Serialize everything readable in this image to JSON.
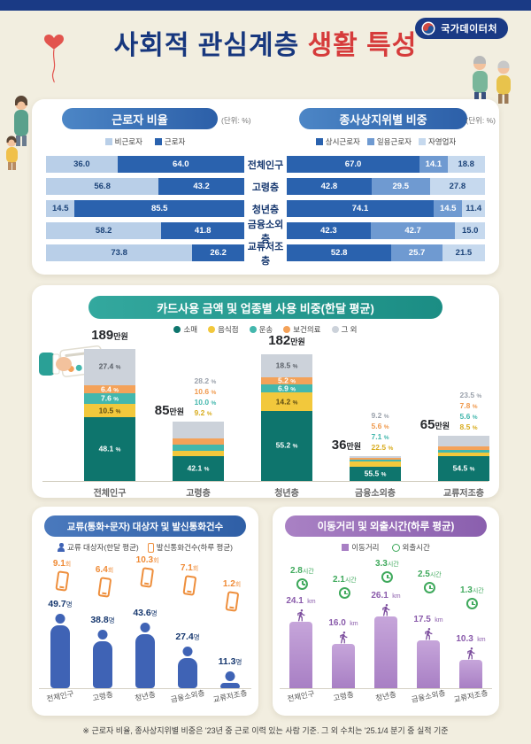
{
  "page": {
    "logo": "국가데이터처",
    "title_blue": "사회적 관심계층",
    "title_red": "생활 특성",
    "footnote": "※ 근로자 비율, 종사상지위별 비중은 '23년 중 근로 이력 있는 사람 기준. 그 외 수치는 '25.1/4 분기 중 실적 기준"
  },
  "chart_data": [
    {
      "id": "worker_ratio",
      "type": "bar",
      "title": "근로자 비율",
      "unit_label": "(단위: %)",
      "legend": [
        "비근로자",
        "근로자"
      ],
      "legend_position": "top",
      "colors": [
        "#b9cfe8",
        "#2a62ae"
      ],
      "categories": [
        "전체인구",
        "고령층",
        "청년층",
        "금융소외층",
        "교류저조층"
      ],
      "series": [
        {
          "name": "비근로자",
          "values": [
            36.0,
            56.8,
            14.5,
            58.2,
            73.8
          ]
        },
        {
          "name": "근로자",
          "values": [
            64.0,
            43.2,
            85.5,
            41.8,
            26.2
          ]
        }
      ]
    },
    {
      "id": "employment_status",
      "type": "bar",
      "title": "종사상지위별 비중",
      "unit_label": "(단위: %)",
      "legend": [
        "상시근로자",
        "일용근로자",
        "자영업자"
      ],
      "legend_position": "top",
      "colors": [
        "#2a62ae",
        "#6f9ad1",
        "#c6d9ee"
      ],
      "categories": [
        "전체인구",
        "고령층",
        "청년층",
        "금융소외층",
        "교류저조층"
      ],
      "series": [
        {
          "name": "상시근로자",
          "values": [
            67.0,
            42.8,
            74.1,
            42.3,
            52.8
          ]
        },
        {
          "name": "일용근로자",
          "values": [
            14.1,
            29.5,
            14.5,
            42.7,
            25.7
          ]
        },
        {
          "name": "자영업자",
          "values": [
            18.8,
            27.8,
            11.4,
            15.0,
            21.5
          ]
        }
      ]
    },
    {
      "id": "card_usage",
      "type": "bar",
      "title": "카드사용 금액 및 업종별 사용 비중(한달 평균)",
      "legend": [
        "소매",
        "음식점",
        "운송",
        "보건의료",
        "그 외"
      ],
      "legend_position": "top",
      "colors": [
        "#0e756d",
        "#f2c83c",
        "#43b7ad",
        "#f4a259",
        "#ccd2da"
      ],
      "categories": [
        "전체인구",
        "고령층",
        "청년층",
        "금융소외층",
        "교류저조층"
      ],
      "amounts": [
        189,
        85,
        182,
        36,
        65
      ],
      "amount_unit": "만원",
      "label_mode": [
        "inside",
        "mixed",
        "inside",
        "mixed",
        "mixed"
      ],
      "series": [
        {
          "name": "소매",
          "values": [
            48.1,
            42.1,
            55.2,
            55.5,
            54.5
          ]
        },
        {
          "name": "음식점",
          "values": [
            10.5,
            9.2,
            14.2,
            22.5,
            8.5
          ]
        },
        {
          "name": "운송",
          "values": [
            7.6,
            10.0,
            6.9,
            7.1,
            5.6
          ]
        },
        {
          "name": "보건의료",
          "values": [
            6.4,
            10.6,
            5.2,
            5.6,
            7.8
          ]
        },
        {
          "name": "그 외",
          "values": [
            27.4,
            28.2,
            18.5,
            9.2,
            23.5
          ]
        }
      ]
    },
    {
      "id": "contacts_calls",
      "type": "bar",
      "title": "교류(통화+문자) 대상자 및 발신통화건수",
      "legend": [
        "교류 대상자(한달 평균)",
        "발신통화건수(하루 평균)"
      ],
      "legend_position": "top",
      "categories": [
        "전체인구",
        "고령층",
        "청년층",
        "금융소외층",
        "교류저조층"
      ],
      "series": [
        {
          "name": "교류 대상자",
          "unit": "명",
          "values": [
            49.7,
            38.8,
            43.6,
            27.4,
            11.3
          ]
        },
        {
          "name": "발신통화건수",
          "unit": "회",
          "values": [
            9.1,
            6.4,
            10.3,
            7.1,
            1.2
          ]
        }
      ]
    },
    {
      "id": "mobility",
      "type": "bar",
      "title": "이동거리 및 외출시간(하루 평균)",
      "legend": [
        "이동거리",
        "외출시간"
      ],
      "legend_position": "top",
      "categories": [
        "전체인구",
        "고령층",
        "청년층",
        "금융소외층",
        "교류저조층"
      ],
      "series": [
        {
          "name": "이동거리",
          "unit": "km",
          "values": [
            24.1,
            16.0,
            26.1,
            17.5,
            10.3
          ]
        },
        {
          "name": "외출시간",
          "unit": "시간",
          "values": [
            2.8,
            2.1,
            3.3,
            2.5,
            1.3
          ]
        }
      ]
    }
  ]
}
